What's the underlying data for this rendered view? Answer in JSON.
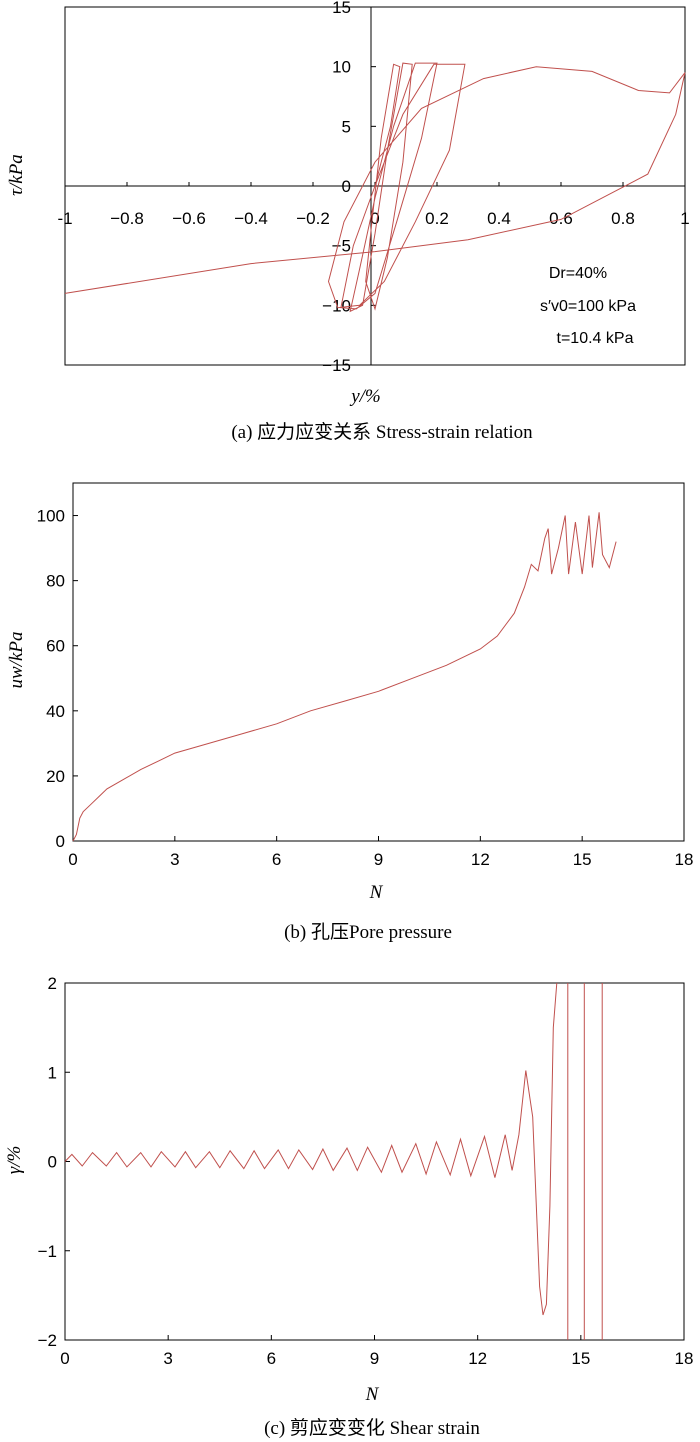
{
  "chart_data": [
    {
      "id": "a",
      "type": "line",
      "caption": "(a) 应力应变关系 Stress-strain relation",
      "xlabel": "y/%",
      "ylabel": "τ/kPa",
      "xlim": [
        -1,
        1
      ],
      "ylim": [
        -15,
        15
      ],
      "xticks": [
        -1,
        -0.8,
        -0.6,
        -0.4,
        -0.2,
        0,
        0.2,
        0.4,
        0.6,
        0.8,
        1
      ],
      "xtick_labels": [
        "-1",
        "−0.8",
        "−0.6",
        "−0.4",
        "−0.2",
        "0",
        "0.2",
        "0.4",
        "0.6",
        "0.8",
        "1"
      ],
      "yticks": [
        -15,
        -10,
        -5,
        0,
        5,
        10,
        15
      ],
      "ytick_labels": [
        "−15",
        "−10",
        "−5",
        "0",
        "5",
        "10",
        "15"
      ],
      "annotations": [
        "Dr=40%",
        "s′v0=100 kPa",
        "t=10.4 kPa"
      ],
      "series": [
        {
          "values_x": [
            0.0,
            0.05,
            0.08,
            0.06,
            0.02,
            -0.01,
            -0.03,
            0.0,
            0.04,
            0.09,
            0.12,
            0.09,
            0.04,
            0.0,
            -0.04,
            -0.08,
            -0.05,
            0.0,
            0.06,
            0.13,
            0.2,
            0.15,
            0.07,
            0.0,
            -0.06,
            -0.11,
            -0.07,
            0.0,
            0.09,
            0.19,
            0.29,
            0.24,
            0.13,
            0.03,
            -0.05,
            -0.12,
            -0.15,
            -0.1,
            0.0,
            0.15,
            0.35,
            0.52,
            0.7,
            0.85,
            0.95,
            1.0,
            0.97,
            0.88,
            0.6,
            0.3,
            0.0,
            -0.4,
            -1.0
          ],
          "values_y": [
            0,
            5,
            10,
            10.2,
            4,
            -3,
            -8,
            -10.3,
            -6,
            2,
            10.2,
            10.3,
            3,
            -4,
            -10,
            -10.5,
            -7,
            -1,
            5,
            10.3,
            10.3,
            4,
            -3,
            -9,
            -10.3,
            -10.2,
            -5,
            0,
            6,
            10.2,
            10.2,
            3,
            -3,
            -8,
            -10,
            -10.2,
            -8,
            -3,
            2,
            6.5,
            9,
            10,
            9.6,
            8,
            7.8,
            9.5,
            6,
            1,
            -2.8,
            -4.5,
            -5.5,
            -6.5,
            -9
          ]
        }
      ]
    },
    {
      "id": "b",
      "type": "line",
      "caption": "(b) 孔压Pore pressure",
      "xlabel": "N",
      "ylabel": "uw/kPa",
      "xlim": [
        0,
        18
      ],
      "ylim": [
        0,
        110
      ],
      "xticks": [
        0,
        3,
        6,
        9,
        12,
        15,
        18
      ],
      "xtick_labels": [
        "0",
        "3",
        "6",
        "9",
        "12",
        "15",
        "18"
      ],
      "yticks": [
        0,
        20,
        40,
        60,
        80,
        100
      ],
      "ytick_labels": [
        "0",
        "20",
        "40",
        "60",
        "80",
        "100"
      ],
      "series": [
        {
          "x": [
            0,
            0.1,
            0.2,
            0.3,
            0.5,
            0.8,
            1.0,
            1.5,
            2.0,
            2.5,
            3.0,
            4.0,
            5.0,
            6.0,
            7.0,
            8.0,
            9.0,
            10.0,
            11.0,
            12.0,
            12.5,
            13.0,
            13.3,
            13.5,
            13.7,
            13.9,
            14.0,
            14.1,
            14.3,
            14.5,
            14.6,
            14.8,
            15.0,
            15.2,
            15.3,
            15.5,
            15.6,
            15.8,
            16.0
          ],
          "y": [
            0,
            2,
            7,
            9,
            11,
            14,
            16,
            19,
            22,
            24.5,
            27,
            30,
            33,
            36,
            40,
            43,
            46,
            50,
            54,
            59,
            63,
            70,
            78,
            85,
            83,
            93,
            96,
            82,
            90,
            100,
            82,
            98,
            82,
            100,
            84,
            101,
            88,
            84,
            92
          ]
        }
      ]
    },
    {
      "id": "c",
      "type": "line",
      "caption": "(c) 剪应变变化 Shear strain",
      "xlabel": "N",
      "ylabel": "γ/%",
      "xlim": [
        0,
        18
      ],
      "ylim": [
        -2,
        2
      ],
      "xticks": [
        0,
        3,
        6,
        9,
        12,
        15,
        18
      ],
      "xtick_labels": [
        "0",
        "3",
        "6",
        "9",
        "12",
        "15",
        "18"
      ],
      "yticks": [
        -2,
        -1,
        0,
        1,
        2
      ],
      "ytick_labels": [
        "−2",
        "−1",
        "0",
        "1",
        "2"
      ],
      "series": [
        {
          "x": [
            0,
            0.2,
            0.5,
            0.8,
            1.2,
            1.5,
            1.8,
            2.2,
            2.5,
            2.8,
            3.2,
            3.5,
            3.8,
            4.2,
            4.5,
            4.8,
            5.2,
            5.5,
            5.8,
            6.2,
            6.5,
            6.8,
            7.2,
            7.5,
            7.8,
            8.2,
            8.5,
            8.8,
            9.2,
            9.5,
            9.8,
            10.2,
            10.5,
            10.8,
            11.2,
            11.5,
            11.8,
            12.2,
            12.5,
            12.8,
            13.0,
            13.2,
            13.4,
            13.6,
            13.8,
            13.9,
            14.0,
            14.1,
            14.2,
            14.3
          ],
          "y": [
            0,
            0.08,
            -0.05,
            0.1,
            -0.05,
            0.1,
            -0.06,
            0.1,
            -0.06,
            0.11,
            -0.06,
            0.11,
            -0.07,
            0.11,
            -0.07,
            0.12,
            -0.08,
            0.12,
            -0.08,
            0.13,
            -0.08,
            0.13,
            -0.09,
            0.14,
            -0.1,
            0.15,
            -0.1,
            0.16,
            -0.12,
            0.18,
            -0.12,
            0.2,
            -0.14,
            0.22,
            -0.15,
            0.25,
            -0.16,
            0.28,
            -0.18,
            0.3,
            -0.1,
            0.3,
            1.02,
            0.5,
            -1.4,
            -1.72,
            -1.6,
            -0.5,
            1.5,
            2.0
          ]
        },
        {
          "x": [
            14.62,
            14.62
          ],
          "y": [
            -2,
            2
          ]
        },
        {
          "x": [
            15.1,
            15.1
          ],
          "y": [
            -2,
            2
          ]
        },
        {
          "x": [
            15.62,
            15.62
          ],
          "y": [
            -2,
            2
          ]
        }
      ]
    }
  ]
}
